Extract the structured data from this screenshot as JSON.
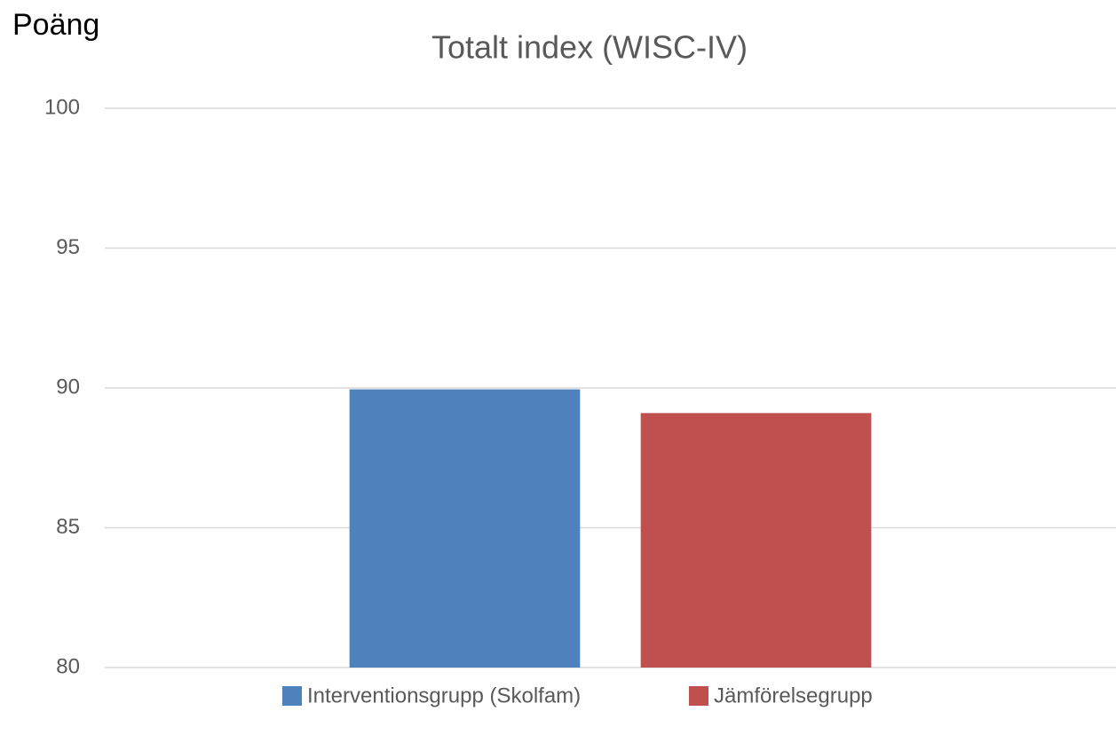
{
  "chart_data": {
    "type": "bar",
    "title": "Totalt index (WISC-IV)",
    "y_label": "Poäng",
    "categories": [
      null
    ],
    "series": [
      {
        "name": "Interventionsgrupp (Skolfam)",
        "color": "#4f81bd",
        "values": [
          89.95
        ]
      },
      {
        "name": "Jämförelsegrupp",
        "color": "#c0504d",
        "values": [
          89.1
        ]
      }
    ],
    "ylim": [
      80,
      100
    ],
    "yticks": [
      80,
      85,
      90,
      95,
      100
    ],
    "grid": true,
    "legend": "bottom"
  }
}
